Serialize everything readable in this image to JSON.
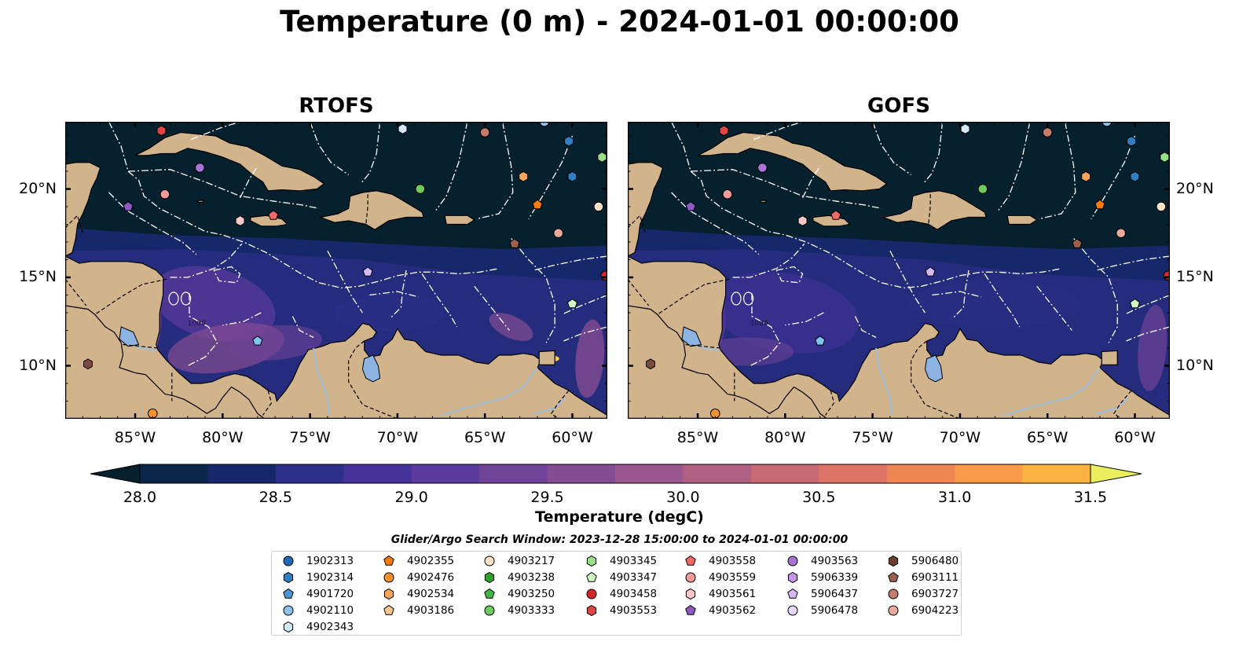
{
  "title": "Temperature (0 m) - 2024-01-01 00:00:00",
  "panels": [
    {
      "title": "RTOFS",
      "variant": "rtofs"
    },
    {
      "title": "GOFS",
      "variant": "gofs"
    }
  ],
  "map_extent": {
    "lon_min": -89,
    "lon_max": -58,
    "lat_min": 7.0,
    "lat_max": 23.8
  },
  "x_ticks": [
    {
      "lon": -85,
      "label": "85°W"
    },
    {
      "lon": -80,
      "label": "80°W"
    },
    {
      "lon": -75,
      "label": "75°W"
    },
    {
      "lon": -70,
      "label": "70°W"
    },
    {
      "lon": -65,
      "label": "65°W"
    },
    {
      "lon": -60,
      "label": "60°W"
    }
  ],
  "y_ticks": [
    {
      "lat": 20,
      "label": "20°N"
    },
    {
      "lat": 15,
      "label": "15°N"
    },
    {
      "lat": 10,
      "label": "10°N"
    }
  ],
  "contour_label": "1000",
  "colors": {
    "land": "#d2b48c",
    "lakes": "#8db3e2",
    "rivers": "#9fbfe0",
    "colormap": [
      "#07202e",
      "#0b2548",
      "#17286a",
      "#2e2f8a",
      "#45339a",
      "#5a3a9c",
      "#6f4397",
      "#844c92",
      "#9a578d",
      "#b06183",
      "#c86a75",
      "#dd7466",
      "#ef8455",
      "#f89a48",
      "#fbb442",
      "#f7cf47",
      "#eaef5e"
    ]
  },
  "colorbar": {
    "label": "Temperature (degC)",
    "min": 28.0,
    "max": 31.5,
    "step": 0.25,
    "ticks": [
      "28.0",
      "28.5",
      "29.0",
      "29.5",
      "30.0",
      "30.5",
      "31.0",
      "31.5"
    ]
  },
  "search_window": "Glider/Argo Search Window: 2023-12-28 15:00:00 to 2024-01-01 00:00:00",
  "floats": [
    {
      "id": "1902313",
      "shape": "circle",
      "color": "#1f6ab5",
      "lon": null,
      "lat": null
    },
    {
      "id": "1902314",
      "shape": "hexagon",
      "color": "#2f7fc1",
      "lon": -60.2,
      "lat": 22.7
    },
    {
      "id": "4901720",
      "shape": "pentagon",
      "color": "#4a98d6",
      "lon": null,
      "lat": null
    },
    {
      "id": "4902110",
      "shape": "circle",
      "color": "#8fc1ea",
      "lon": -61.6,
      "lat": 23.8
    },
    {
      "id": "4902343",
      "shape": "hexagon",
      "color": "#d3e8f7",
      "lon": -69.7,
      "lat": 23.4
    },
    {
      "id": "4902355",
      "shape": "pentagon",
      "color": "#f57b0f",
      "lon": -62.0,
      "lat": 19.1
    },
    {
      "id": "4902476",
      "shape": "circle",
      "color": "#f7922c",
      "lon": -84.0,
      "lat": 7.3
    },
    {
      "id": "4902534",
      "shape": "hexagon",
      "color": "#f8a45a",
      "lon": -62.8,
      "lat": 20.7
    },
    {
      "id": "4903186",
      "shape": "pentagon",
      "color": "#fcc48e",
      "lon": null,
      "lat": null
    },
    {
      "id": "4903217",
      "shape": "circle",
      "color": "#fde4c8",
      "lon": -58.5,
      "lat": 19.0
    },
    {
      "id": "4903238",
      "shape": "hexagon",
      "color": "#2ca02c",
      "lon": null,
      "lat": null
    },
    {
      "id": "4903250",
      "shape": "pentagon",
      "color": "#45b745",
      "lon": null,
      "lat": null
    },
    {
      "id": "4903333",
      "shape": "circle",
      "color": "#6dcc5f",
      "lon": -68.7,
      "lat": 20.0
    },
    {
      "id": "4903345",
      "shape": "hexagon",
      "color": "#98e08a",
      "lon": -58.3,
      "lat": 21.8
    },
    {
      "id": "4903347",
      "shape": "pentagon",
      "color": "#cff7c6",
      "lon": -60.0,
      "lat": 13.5
    },
    {
      "id": "4903458",
      "shape": "circle",
      "color": "#d62728",
      "lon": -58.1,
      "lat": 15.1
    },
    {
      "id": "4903553",
      "shape": "hexagon",
      "color": "#e04545",
      "lon": -83.5,
      "lat": 23.3
    },
    {
      "id": "4903558",
      "shape": "pentagon",
      "color": "#f06a6a",
      "lon": -77.1,
      "lat": 18.5
    },
    {
      "id": "4903559",
      "shape": "circle",
      "color": "#f59a9a",
      "lon": -83.3,
      "lat": 19.7
    },
    {
      "id": "4903561",
      "shape": "hexagon",
      "color": "#fcc8c8",
      "lon": -79.0,
      "lat": 18.2
    },
    {
      "id": "4903562",
      "shape": "pentagon",
      "color": "#8c5ac0",
      "lon": -85.4,
      "lat": 19.0
    },
    {
      "id": "4903563",
      "shape": "circle",
      "color": "#a874d4",
      "lon": -81.3,
      "lat": 21.2
    },
    {
      "id": "5906339",
      "shape": "hexagon",
      "color": "#c197e6",
      "lon": null,
      "lat": null
    },
    {
      "id": "5906437",
      "shape": "pentagon",
      "color": "#d6b8f2",
      "lon": -71.7,
      "lat": 15.3
    },
    {
      "id": "5906478",
      "shape": "circle",
      "color": "#ead8fb",
      "lon": null,
      "lat": null
    },
    {
      "id": "5906480",
      "shape": "hexagon",
      "color": "#6b3f2e",
      "lon": null,
      "lat": null
    },
    {
      "id": "6903111",
      "shape": "pentagon",
      "color": "#9b5f4d",
      "lon": -63.3,
      "lat": 16.9
    },
    {
      "id": "6903727",
      "shape": "circle",
      "color": "#c47c6c",
      "lon": -65.0,
      "lat": 23.2
    },
    {
      "id": "6904223",
      "shape": "circle",
      "color": "#e9a99b",
      "lon": -60.8,
      "lat": 17.5
    },
    {
      "id": "",
      "shape": "hexagon",
      "color": "#7a4a3a",
      "lon": -87.7,
      "lat": 10.1
    },
    {
      "id": "",
      "shape": "pentagon",
      "color": "#7fc4ef",
      "lon": -78.0,
      "lat": 11.4
    },
    {
      "id": "",
      "shape": "hexagon",
      "color": "#2f7fc1",
      "lon": -60.0,
      "lat": 20.7
    }
  ]
}
